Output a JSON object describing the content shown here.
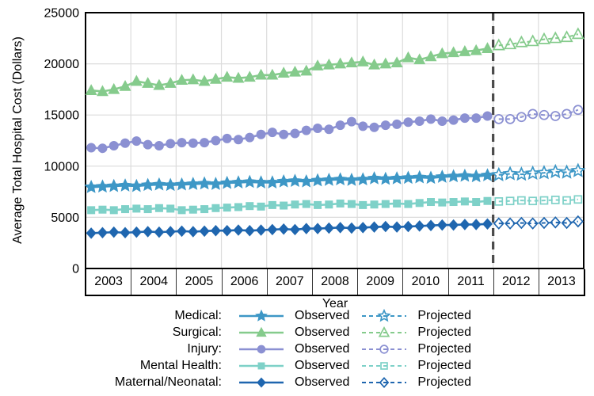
{
  "page": {
    "background": "#ffffff"
  },
  "chart_data": {
    "type": "line",
    "title": "",
    "xlabel": "Year",
    "ylabel": "Average Total Hospital Cost (Dollars)",
    "xlim": [
      2003,
      2014
    ],
    "ylim": [
      0,
      25000
    ],
    "yticks": [
      0,
      5000,
      10000,
      15000,
      20000,
      25000
    ],
    "x_tick_labels": [
      "2003",
      "2004",
      "2005",
      "2006",
      "2007",
      "2008",
      "2009",
      "2010",
      "2011",
      "2012",
      "2013"
    ],
    "grid": true,
    "gridline_color": "#dcdcdc",
    "frame_color": "#000000",
    "divider": {
      "x": 2012,
      "style": "dashed",
      "color": "#4a4a4a"
    },
    "x_first_observed": 2003.125,
    "x_first_projected": 2012.125,
    "x_step": 0.25,
    "legend": {
      "position": "bottom",
      "observed_label": "Observed",
      "projected_label": "Projected"
    },
    "series": [
      {
        "name": "Medical",
        "legend_label": "Medical:",
        "color": "#3d97c6",
        "marker": "star",
        "observed": [
          7950,
          8000,
          8050,
          8100,
          8050,
          8150,
          8200,
          8150,
          8200,
          8250,
          8300,
          8250,
          8350,
          8400,
          8450,
          8400,
          8400,
          8500,
          8550,
          8500,
          8600,
          8650,
          8700,
          8650,
          8700,
          8800,
          8750,
          8800,
          8850,
          8900,
          8850,
          8950,
          9000,
          9050,
          9000,
          9100
        ],
        "projected": [
          9150,
          9250,
          9200,
          9300,
          9350,
          9450,
          9400,
          9550
        ]
      },
      {
        "name": "Surgical",
        "legend_label": "Surgical:",
        "color": "#85cb8c",
        "marker": "triangle",
        "observed": [
          17400,
          17300,
          17500,
          17800,
          18300,
          18100,
          17900,
          18100,
          18400,
          18450,
          18300,
          18500,
          18700,
          18600,
          18700,
          18900,
          18900,
          19100,
          19200,
          19300,
          19800,
          19900,
          20000,
          20100,
          20200,
          19900,
          20000,
          20100,
          20600,
          20400,
          20700,
          21000,
          21100,
          21200,
          21300,
          21500
        ],
        "projected": [
          21800,
          21900,
          22100,
          22200,
          22400,
          22500,
          22600,
          22900
        ]
      },
      {
        "name": "Injury",
        "legend_label": "Injury:",
        "color": "#8b90d2",
        "marker": "circle",
        "observed": [
          11800,
          11750,
          12000,
          12250,
          12450,
          12100,
          12000,
          12200,
          12300,
          12250,
          12300,
          12500,
          12700,
          12600,
          12800,
          13100,
          13300,
          13100,
          13200,
          13500,
          13700,
          13600,
          14000,
          14350,
          13900,
          13800,
          14000,
          14100,
          14300,
          14400,
          14600,
          14400,
          14500,
          14700,
          14700,
          14900
        ],
        "projected": [
          14600,
          14600,
          14800,
          15100,
          15000,
          14900,
          15100,
          15500
        ]
      },
      {
        "name": "Mental Health",
        "legend_label": "Mental Health:",
        "color": "#7ed1c8",
        "marker": "square",
        "observed": [
          5700,
          5750,
          5700,
          5800,
          5850,
          5800,
          5900,
          5850,
          5700,
          5750,
          5800,
          5900,
          5950,
          6000,
          6100,
          6050,
          6200,
          6150,
          6250,
          6300,
          6200,
          6250,
          6350,
          6300,
          6200,
          6250,
          6300,
          6350,
          6300,
          6400,
          6500,
          6450,
          6500,
          6550,
          6500,
          6600
        ],
        "projected": [
          6550,
          6600,
          6650,
          6600,
          6650,
          6700,
          6650,
          6750
        ]
      },
      {
        "name": "Maternal/Neonatal",
        "legend_label": "Maternal/Neonatal:",
        "color": "#1f66af",
        "marker": "diamond",
        "observed": [
          3450,
          3500,
          3550,
          3500,
          3550,
          3600,
          3550,
          3600,
          3650,
          3600,
          3650,
          3700,
          3700,
          3750,
          3700,
          3750,
          3800,
          3850,
          3800,
          3900,
          3900,
          3950,
          4000,
          3950,
          4000,
          4050,
          4100,
          4050,
          4100,
          4150,
          4200,
          4250,
          4250,
          4300,
          4300,
          4350
        ],
        "projected": [
          4400,
          4400,
          4450,
          4400,
          4450,
          4500,
          4450,
          4600
        ]
      }
    ]
  }
}
